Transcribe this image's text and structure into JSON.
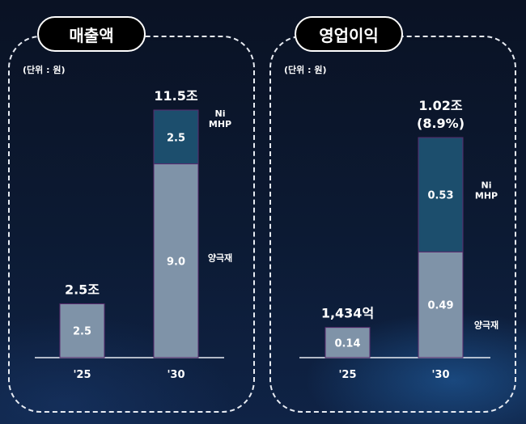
{
  "chart_data": [
    {
      "type": "bar",
      "stacked": true,
      "title": "매출액",
      "unit_note": "(단위 : 원)",
      "categories": [
        "'25",
        "'30"
      ],
      "series": [
        {
          "name": "양극재",
          "values": [
            2.5,
            9.0
          ],
          "labels": [
            "2.5",
            "9.0"
          ],
          "color": "#7f93a8"
        },
        {
          "name": "Ni MHP",
          "values": [
            0,
            2.5
          ],
          "labels": [
            "",
            "2.5"
          ],
          "color": "#1c4e6d"
        }
      ],
      "totals": [
        {
          "lines": [
            "2.5조"
          ]
        },
        {
          "lines": [
            "11.5조"
          ]
        }
      ],
      "series_side_labels": [
        {
          "series": "Ni MHP",
          "lines": [
            "Ni",
            "MHP"
          ]
        },
        {
          "series": "양극재",
          "lines": [
            "양극재"
          ]
        }
      ],
      "grid": false
    },
    {
      "type": "bar",
      "stacked": true,
      "title": "영업이익",
      "unit_note": "(단위 : 원)",
      "categories": [
        "'25",
        "'30"
      ],
      "series": [
        {
          "name": "양극재",
          "values": [
            0.14,
            0.49
          ],
          "labels": [
            "0.14",
            "0.49"
          ],
          "color": "#7f93a8"
        },
        {
          "name": "Ni MHP",
          "values": [
            0,
            0.53
          ],
          "labels": [
            "",
            "0.53"
          ],
          "color": "#1c4e6d"
        }
      ],
      "totals": [
        {
          "lines": [
            "1,434억"
          ]
        },
        {
          "lines": [
            "1.02조",
            "(8.9%)"
          ]
        }
      ],
      "series_side_labels": [
        {
          "series": "Ni MHP",
          "lines": [
            "Ni",
            "MHP"
          ]
        },
        {
          "series": "양극재",
          "lines": [
            "양극재"
          ]
        }
      ],
      "grid": false
    }
  ],
  "colors": {
    "border": "#e8ecf3",
    "axis": "#e8ecf3",
    "bar_outline": "#5a2a6e"
  }
}
